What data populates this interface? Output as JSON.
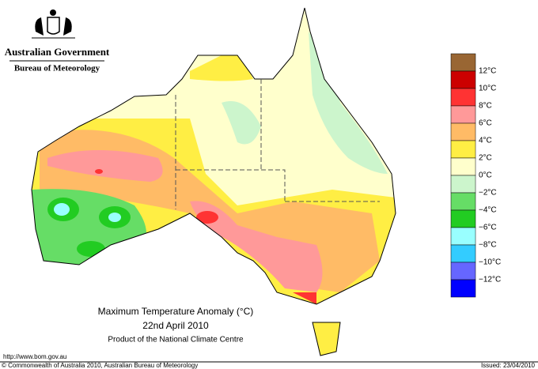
{
  "header": {
    "government": "Australian Government",
    "bureau": "Bureau of Meteorology"
  },
  "title": {
    "line1": "Maximum Temperature Anomaly (°C)",
    "line2": "22nd April 2010",
    "line3": "Product of the National Climate Centre"
  },
  "legend": {
    "colors": [
      "#996633",
      "#cc0000",
      "#ff3333",
      "#ff9999",
      "#ffbb66",
      "#ffee44",
      "#ffffcc",
      "#ccf5cc",
      "#66dd66",
      "#22cc22",
      "#99ffff",
      "#33ccff",
      "#6666ff",
      "#0000ff"
    ],
    "labels": [
      "12°C",
      "10°C",
      "8°C",
      "6°C",
      "4°C",
      "2°C",
      "0°C",
      "−2°C",
      "−4°C",
      "−6°C",
      "−8°C",
      "−10°C",
      "−12°C"
    ]
  },
  "footer": {
    "url": "http://www.bom.gov.au",
    "copyright": "© Commonwealth of Australia 2010, Australian Bureau of Meteorology",
    "issued": "Issued: 23/04/2010"
  }
}
